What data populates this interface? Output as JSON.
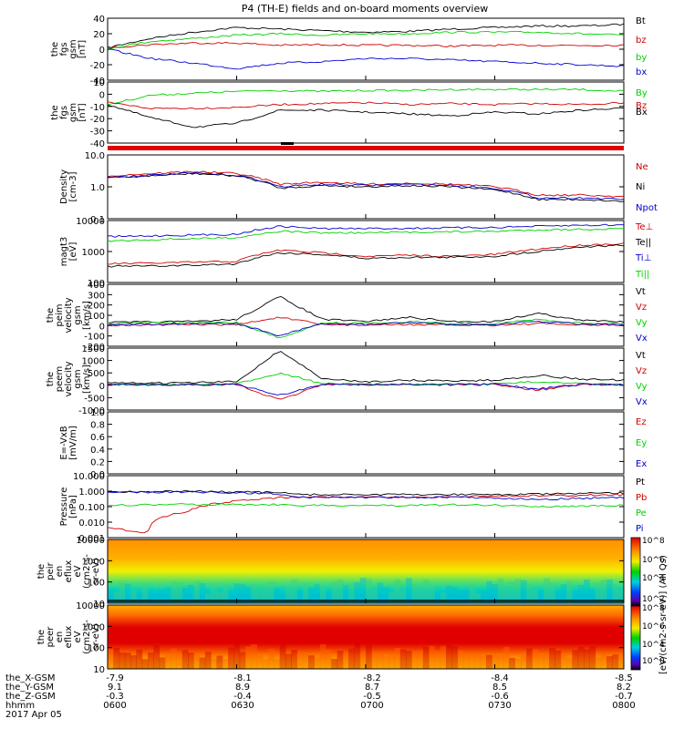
{
  "title": "P4 (TH-E) fields and on-board moments overview",
  "footer": {
    "rows": [
      {
        "label": "the_X-GSM",
        "values": [
          "-7.9",
          "-8.1",
          "-8.2",
          "-8.4",
          "-8.5"
        ]
      },
      {
        "label": "the_Y-GSM",
        "values": [
          "9.1",
          "8.9",
          "8.7",
          "8.5",
          "8.2"
        ]
      },
      {
        "label": "the_Z-GSM",
        "values": [
          "-0.3",
          "-0.4",
          "-0.5",
          "-0.6",
          "-0.7"
        ]
      },
      {
        "label": "hhmm",
        "values": [
          "0600",
          "0630",
          "0700",
          "0730",
          "0800"
        ]
      }
    ],
    "date": "2017 Apr 05"
  },
  "colorbar": {
    "label": "[eV/(cm2-s-sr-eV)] (All Qs)",
    "ticks": [
      "10^8",
      "10^6",
      "10^4",
      "10^2",
      "10^0"
    ]
  },
  "colors": {
    "black": "#000000",
    "red": "#d00000",
    "green": "#00d000",
    "blue": "#0000d0"
  },
  "chart_data": [
    {
      "type": "line",
      "panel": "fgs_gsm_main",
      "ylabel": [
        "the",
        "fgs",
        "gsm",
        "[nT]"
      ],
      "ylim": [
        -40,
        40
      ],
      "ticks": [
        "40",
        "20",
        "0",
        "-20",
        "-40"
      ],
      "x": [
        "0600",
        "0610",
        "0620",
        "0630",
        "0640",
        "0650",
        "0700",
        "0710",
        "0720",
        "0730",
        "0740",
        "0750",
        "0800"
      ],
      "series": [
        {
          "name": "Bt",
          "color": "#000000",
          "values": [
            2,
            14,
            22,
            28,
            26,
            24,
            22,
            23,
            26,
            28,
            30,
            30,
            32
          ]
        },
        {
          "name": "bz",
          "color": "#d00000",
          "values": [
            2,
            6,
            8,
            8,
            5,
            6,
            5,
            5,
            4,
            5,
            5,
            5,
            5
          ]
        },
        {
          "name": "by",
          "color": "#00d000",
          "values": [
            1,
            10,
            14,
            18,
            20,
            18,
            20,
            20,
            22,
            22,
            22,
            20,
            18
          ]
        },
        {
          "name": "bx",
          "color": "#0000d0",
          "values": [
            0,
            -12,
            -18,
            -25,
            -18,
            -16,
            -12,
            -12,
            -14,
            -16,
            -18,
            -20,
            -22
          ]
        }
      ]
    },
    {
      "type": "line",
      "panel": "fgs_gsm_secondary",
      "ylabel": [
        "the",
        "fgs",
        "gsm",
        "[nT]"
      ],
      "ylim": [
        -45,
        20
      ],
      "ticks": [
        "10",
        "0",
        "-10",
        "-20",
        "-30",
        "-40"
      ],
      "x": [
        "0600",
        "0610",
        "0620",
        "0630",
        "0640",
        "0650",
        "0700",
        "0710",
        "0720",
        "0730",
        "0740",
        "0750",
        "0800"
      ],
      "series": [
        {
          "name": "By",
          "color": "#00d000",
          "values": [
            -4,
            6,
            8,
            10,
            11,
            10,
            11,
            11,
            12,
            12,
            12,
            12,
            10
          ]
        },
        {
          "name": "Bz",
          "color": "#d00000",
          "values": [
            -2,
            -8,
            -8,
            -7,
            -4,
            -3,
            -2,
            -4,
            -3,
            -4,
            -3,
            -4,
            -2
          ]
        },
        {
          "name": "Bx",
          "color": "#000000",
          "values": [
            -4,
            -18,
            -28,
            -24,
            -10,
            -10,
            -12,
            -14,
            -16,
            -12,
            -14,
            -10,
            -8
          ]
        }
      ]
    },
    {
      "type": "line",
      "panel": "density",
      "ylabel": [
        "Density",
        "[cm-3]"
      ],
      "scale": "log",
      "ylim": [
        0.1,
        10
      ],
      "ticks": [
        "10.0",
        "1.0",
        "0.1"
      ],
      "x": [
        "0600",
        "0610",
        "0620",
        "0630",
        "0640",
        "0650",
        "0700",
        "0710",
        "0720",
        "0730",
        "0740",
        "0750",
        "0800"
      ],
      "series": [
        {
          "name": "Ne",
          "color": "#d00000",
          "values": [
            2.2,
            2.6,
            3.0,
            2.6,
            1.2,
            1.4,
            1.2,
            1.3,
            1.2,
            1.0,
            0.55,
            0.55,
            0.5
          ]
        },
        {
          "name": "Ni",
          "color": "#000000",
          "values": [
            1.9,
            2.2,
            2.6,
            2.2,
            0.9,
            1.1,
            1.0,
            1.1,
            1.0,
            0.8,
            0.4,
            0.4,
            0.35
          ]
        },
        {
          "name": "Npot",
          "color": "#0000d0",
          "values": [
            2.0,
            2.3,
            2.7,
            2.3,
            1.0,
            1.2,
            1.1,
            1.2,
            1.1,
            0.9,
            0.45,
            0.45,
            0.4
          ]
        }
      ]
    },
    {
      "type": "line",
      "panel": "temperature",
      "ylabel": [
        "magt3",
        "[eV]"
      ],
      "scale": "log",
      "ylim": [
        100,
        10000
      ],
      "ticks": [
        "10000",
        "1000",
        "100"
      ],
      "x": [
        "0600",
        "0610",
        "0620",
        "0630",
        "0640",
        "0650",
        "0700",
        "0710",
        "0720",
        "0730",
        "0740",
        "0750",
        "0800"
      ],
      "series": [
        {
          "name": "Te⊥",
          "color": "#d00000",
          "values": [
            400,
            420,
            450,
            480,
            1100,
            900,
            700,
            750,
            700,
            800,
            1200,
            1600,
            1800
          ]
        },
        {
          "name": "Te||",
          "color": "#000000",
          "values": [
            330,
            340,
            360,
            400,
            900,
            800,
            600,
            650,
            650,
            700,
            1000,
            1400,
            1600
          ]
        },
        {
          "name": "Ti⊥",
          "color": "#0000d0",
          "values": [
            3000,
            3200,
            3400,
            3600,
            6500,
            5500,
            5500,
            5600,
            5800,
            6000,
            6500,
            7000,
            7200
          ]
        },
        {
          "name": "Ti||",
          "color": "#00d000",
          "values": [
            2200,
            2400,
            2600,
            2800,
            4500,
            4000,
            4000,
            4200,
            4300,
            4500,
            5000,
            5200,
            5400
          ]
        }
      ]
    },
    {
      "type": "line",
      "panel": "ion_velocity",
      "ylabel": [
        "the",
        "peim",
        "velocity",
        "gsm",
        "[km/s]"
      ],
      "ylim": [
        -200,
        400
      ],
      "ticks": [
        "400",
        "300",
        "200",
        "100",
        "0",
        "-100",
        "-200"
      ],
      "x": [
        "0600",
        "0610",
        "0620",
        "0630",
        "0640",
        "0650",
        "0700",
        "0710",
        "0720",
        "0730",
        "0740",
        "0750",
        "0800"
      ],
      "series": [
        {
          "name": "Vt",
          "color": "#000000",
          "values": [
            30,
            35,
            40,
            60,
            280,
            60,
            40,
            80,
            40,
            40,
            120,
            50,
            40
          ]
        },
        {
          "name": "Vz",
          "color": "#d00000",
          "values": [
            5,
            5,
            10,
            10,
            80,
            10,
            5,
            10,
            5,
            5,
            20,
            5,
            5
          ]
        },
        {
          "name": "Vy",
          "color": "#00d000",
          "values": [
            20,
            25,
            30,
            30,
            -120,
            30,
            20,
            40,
            20,
            20,
            60,
            25,
            20
          ]
        },
        {
          "name": "Vx",
          "color": "#0000d0",
          "values": [
            10,
            15,
            20,
            20,
            -100,
            20,
            10,
            30,
            10,
            10,
            40,
            15,
            10
          ]
        }
      ]
    },
    {
      "type": "line",
      "panel": "electron_velocity",
      "ylabel": [
        "the",
        "peem",
        "velocity",
        "gsm",
        "[km/s]"
      ],
      "ylim": [
        -1000,
        1500
      ],
      "ticks": [
        "1500",
        "1000",
        "500",
        "0",
        "-500",
        "-1000"
      ],
      "x": [
        "0600",
        "0610",
        "0620",
        "0630",
        "0640",
        "0650",
        "0700",
        "0710",
        "0720",
        "0730",
        "0740",
        "0750",
        "0800"
      ],
      "series": [
        {
          "name": "Vt",
          "color": "#000000",
          "values": [
            80,
            90,
            100,
            150,
            1400,
            250,
            150,
            200,
            180,
            200,
            400,
            250,
            200
          ]
        },
        {
          "name": "Vz",
          "color": "#d00000",
          "values": [
            20,
            20,
            20,
            30,
            -600,
            40,
            20,
            30,
            20,
            30,
            -200,
            30,
            20
          ]
        },
        {
          "name": "Vy",
          "color": "#00d000",
          "values": [
            30,
            30,
            40,
            50,
            500,
            60,
            40,
            50,
            40,
            50,
            150,
            50,
            40
          ]
        },
        {
          "name": "Vx",
          "color": "#0000d0",
          "values": [
            20,
            20,
            30,
            30,
            -400,
            40,
            30,
            40,
            30,
            40,
            -150,
            40,
            30
          ]
        }
      ]
    },
    {
      "type": "line",
      "panel": "electric_field",
      "ylabel": [
        "E=-VxB",
        "[mV/m]"
      ],
      "ylim": [
        0,
        1
      ],
      "ticks": [
        "1.0",
        "0.8",
        "0.6",
        "0.4",
        "0.2",
        "0.0"
      ],
      "series": [
        {
          "name": "Ez",
          "color": "#d00000",
          "values": []
        },
        {
          "name": "Ey",
          "color": "#00d000",
          "values": []
        },
        {
          "name": "Ex",
          "color": "#0000d0",
          "values": []
        }
      ]
    },
    {
      "type": "line",
      "panel": "pressure",
      "ylabel": [
        "Pressure",
        "[nPa]"
      ],
      "scale": "log",
      "ylim": [
        0.001,
        10
      ],
      "ticks": [
        "10.000",
        "1.000",
        "0.100",
        "0.010",
        "0.001"
      ],
      "x": [
        "0600",
        "0605",
        "0610",
        "0620",
        "0630",
        "0640",
        "0650",
        "0700",
        "0710",
        "0720",
        "0730",
        "0740",
        "0750",
        "0800"
      ],
      "series": [
        {
          "name": "Pt",
          "color": "#000000",
          "values": [
            0.9,
            0.95,
            1.0,
            0.9,
            0.85,
            0.6,
            0.6,
            0.6,
            0.6,
            0.62,
            0.6,
            0.65,
            0.7,
            0.75
          ]
        },
        {
          "name": "Pb",
          "color": "#d00000",
          "values": [
            0.004,
            0.002,
            0.05,
            0.2,
            0.35,
            0.45,
            0.4,
            0.4,
            0.4,
            0.45,
            0.5,
            0.5,
            0.55,
            0.6
          ]
        },
        {
          "name": "Pe",
          "color": "#00d000",
          "values": [
            0.12,
            0.13,
            0.14,
            0.14,
            0.14,
            0.12,
            0.12,
            0.12,
            0.13,
            0.13,
            0.12,
            0.1,
            0.11,
            0.12
          ]
        },
        {
          "name": "Pi",
          "color": "#0000d0",
          "values": [
            0.8,
            0.85,
            0.9,
            0.8,
            0.7,
            0.4,
            0.4,
            0.4,
            0.4,
            0.4,
            0.35,
            0.3,
            0.35,
            0.38
          ]
        }
      ]
    },
    {
      "type": "heatmap",
      "panel": "ion_spectrogram",
      "ylabel": [
        "the",
        "peir",
        "en",
        "eflux",
        "eV",
        "(cm2-s-",
        "sr-eV)"
      ],
      "scale": "log",
      "ylim": [
        5,
        25000
      ],
      "ticks": [
        "10000",
        "1000",
        "100",
        "10"
      ]
    },
    {
      "type": "heatmap",
      "panel": "electron_spectrogram",
      "ylabel": [
        "the",
        "peer",
        "en",
        "eflux",
        "eV",
        "(cm2-s-",
        "sr-eV)"
      ],
      "scale": "log",
      "ylim": [
        5,
        25000
      ],
      "ticks": [
        "10000",
        "1000",
        "100",
        "10"
      ]
    }
  ]
}
